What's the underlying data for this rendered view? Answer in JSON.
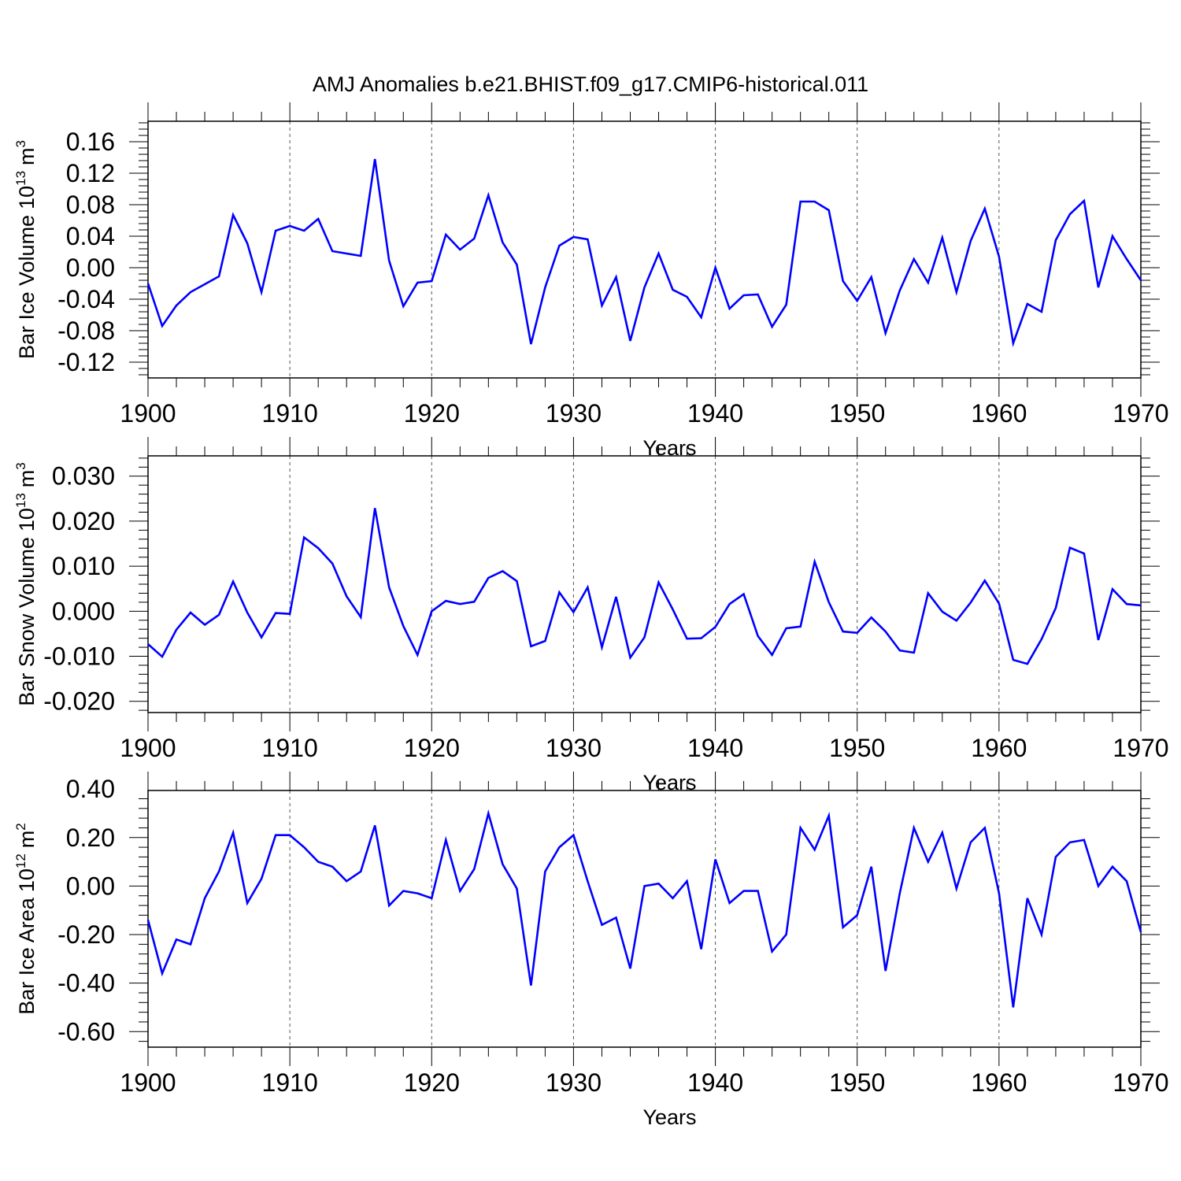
{
  "title": "AMJ Anomalies b.e21.BHIST.f09_g17.CMIP6-historical.011",
  "chart_data": [
    {
      "type": "line",
      "ylabel": "Bar Ice Volume",
      "ylabel_unit_base": "10",
      "ylabel_unit_exp": "13",
      "ylabel_unit_var": "m",
      "ylabel_unit_var_exp": "3",
      "xlabel": "Years",
      "xlim": [
        1900,
        1970
      ],
      "ylim": [
        -0.14,
        0.186
      ],
      "xticks": [
        1900,
        1910,
        1920,
        1930,
        1940,
        1950,
        1960,
        1970
      ],
      "yticks": [
        -0.12,
        -0.08,
        -0.04,
        0.0,
        0.04,
        0.08,
        0.12,
        0.16
      ],
      "ytick_labels": [
        "-0.12",
        "-0.08",
        "-0.04",
        "0.00",
        "0.04",
        "0.08",
        "0.12",
        "0.16"
      ],
      "grid": "dashed vertical lines at major x ticks",
      "series": [
        {
          "color": "#0000ff",
          "x": [
            1900,
            1901,
            1902,
            1903,
            1904,
            1905,
            1906,
            1907,
            1908,
            1909,
            1910,
            1911,
            1912,
            1913,
            1914,
            1915,
            1916,
            1917,
            1918,
            1919,
            1920,
            1921,
            1922,
            1923,
            1924,
            1925,
            1926,
            1927,
            1928,
            1929,
            1930,
            1931,
            1932,
            1933,
            1934,
            1935,
            1936,
            1937,
            1938,
            1939,
            1940,
            1941,
            1942,
            1943,
            1944,
            1945,
            1946,
            1947,
            1948,
            1949,
            1950,
            1951,
            1952,
            1953,
            1954,
            1955,
            1956,
            1957,
            1958,
            1959,
            1960,
            1961,
            1962,
            1963,
            1964,
            1965,
            1966,
            1967,
            1968,
            1969,
            1970
          ],
          "values": [
            -0.02,
            -0.074,
            -0.048,
            -0.031,
            -0.021,
            -0.011,
            0.067,
            0.031,
            -0.031,
            0.047,
            0.053,
            0.047,
            0.062,
            0.021,
            0.018,
            0.015,
            0.138,
            0.009,
            -0.049,
            -0.019,
            -0.017,
            0.042,
            0.023,
            0.037,
            0.092,
            0.032,
            0.004,
            -0.097,
            -0.025,
            0.028,
            0.039,
            0.036,
            -0.048,
            -0.012,
            -0.093,
            -0.025,
            0.018,
            -0.028,
            -0.037,
            -0.063,
            0.0,
            -0.052,
            -0.035,
            -0.034,
            -0.075,
            -0.047,
            0.084,
            0.084,
            0.073,
            -0.017,
            -0.042,
            -0.012,
            -0.083,
            -0.029,
            0.011,
            -0.019,
            0.038,
            -0.031,
            0.034,
            0.075,
            0.014,
            -0.096,
            -0.046,
            -0.056,
            0.035,
            0.068,
            0.085,
            -0.025,
            0.04,
            0.011,
            -0.016
          ]
        }
      ]
    },
    {
      "type": "line",
      "ylabel": "Bar Snow Volume",
      "ylabel_unit_base": "10",
      "ylabel_unit_exp": "13",
      "ylabel_unit_var": "m",
      "ylabel_unit_var_exp": "3",
      "xlabel": "Years",
      "xlim": [
        1900,
        1970
      ],
      "ylim": [
        -0.0225,
        0.0345
      ],
      "xticks": [
        1900,
        1910,
        1920,
        1930,
        1940,
        1950,
        1960,
        1970
      ],
      "yticks": [
        -0.02,
        -0.01,
        0.0,
        0.01,
        0.02,
        0.03
      ],
      "ytick_labels": [
        "-0.020",
        "-0.010",
        "0.000",
        "0.010",
        "0.020",
        "0.030"
      ],
      "grid": "dashed vertical lines at major x ticks",
      "series": [
        {
          "color": "#0000ff",
          "x": [
            1900,
            1901,
            1902,
            1903,
            1904,
            1905,
            1906,
            1907,
            1908,
            1909,
            1910,
            1911,
            1912,
            1913,
            1914,
            1915,
            1916,
            1917,
            1918,
            1919,
            1920,
            1921,
            1922,
            1923,
            1924,
            1925,
            1926,
            1927,
            1928,
            1929,
            1930,
            1931,
            1932,
            1933,
            1934,
            1935,
            1936,
            1937,
            1938,
            1939,
            1940,
            1941,
            1942,
            1943,
            1944,
            1945,
            1946,
            1947,
            1948,
            1949,
            1950,
            1951,
            1952,
            1953,
            1954,
            1955,
            1956,
            1957,
            1958,
            1959,
            1960,
            1961,
            1962,
            1963,
            1964,
            1965,
            1966,
            1967,
            1968,
            1969,
            1970
          ],
          "values": [
            -0.0073,
            -0.0101,
            -0.0041,
            -0.0003,
            -0.003,
            -0.0008,
            0.0066,
            -0.0003,
            -0.0058,
            -0.0004,
            -0.0006,
            0.0164,
            0.014,
            0.0106,
            0.0033,
            -0.0013,
            0.0229,
            0.0053,
            -0.0033,
            -0.0097,
            0.0,
            0.0023,
            0.0016,
            0.0021,
            0.0074,
            0.0089,
            0.0067,
            -0.0078,
            -0.0066,
            0.0042,
            -0.0002,
            0.0053,
            -0.008,
            0.0032,
            -0.0103,
            -0.0058,
            0.0064,
            0.0004,
            -0.0061,
            -0.006,
            -0.0035,
            0.0016,
            0.0038,
            -0.0055,
            -0.0097,
            -0.0038,
            -0.0034,
            0.011,
            0.002,
            -0.0045,
            -0.0048,
            -0.0014,
            -0.0045,
            -0.0087,
            -0.0092,
            0.004,
            -0.0001,
            -0.0021,
            0.0019,
            0.0068,
            0.0017,
            -0.0108,
            -0.0117,
            -0.0062,
            0.0007,
            0.0141,
            0.0128,
            -0.0064,
            0.0049,
            0.0016,
            0.0013
          ]
        }
      ]
    },
    {
      "type": "line",
      "ylabel": "Bar Ice Area",
      "ylabel_unit_base": "10",
      "ylabel_unit_exp": "12",
      "ylabel_unit_var": "m",
      "ylabel_unit_var_exp": "2",
      "xlabel": "Years",
      "xlim": [
        1900,
        1970
      ],
      "ylim": [
        -0.664,
        0.394
      ],
      "xticks": [
        1900,
        1910,
        1920,
        1930,
        1940,
        1950,
        1960,
        1970
      ],
      "yticks": [
        -0.6,
        -0.4,
        -0.2,
        0.0,
        0.2,
        0.4
      ],
      "ytick_labels": [
        "-0.60",
        "-0.40",
        "-0.20",
        "0.00",
        "0.20",
        "0.40"
      ],
      "grid": "dashed vertical lines at major x ticks",
      "series": [
        {
          "color": "#0000ff",
          "x": [
            1900,
            1901,
            1902,
            1903,
            1904,
            1905,
            1906,
            1907,
            1908,
            1909,
            1910,
            1911,
            1912,
            1913,
            1914,
            1915,
            1916,
            1917,
            1918,
            1919,
            1920,
            1921,
            1922,
            1923,
            1924,
            1925,
            1926,
            1927,
            1928,
            1929,
            1930,
            1931,
            1932,
            1933,
            1934,
            1935,
            1936,
            1937,
            1938,
            1939,
            1940,
            1941,
            1942,
            1943,
            1944,
            1945,
            1946,
            1947,
            1948,
            1949,
            1950,
            1951,
            1952,
            1953,
            1954,
            1955,
            1956,
            1957,
            1958,
            1959,
            1960,
            1961,
            1962,
            1963,
            1964,
            1965,
            1966,
            1967,
            1968,
            1969,
            1970
          ],
          "values": [
            -0.14,
            -0.36,
            -0.22,
            -0.24,
            -0.05,
            0.06,
            0.22,
            -0.07,
            0.03,
            0.21,
            0.21,
            0.16,
            0.1,
            0.08,
            0.02,
            0.06,
            0.25,
            -0.08,
            -0.02,
            -0.03,
            -0.05,
            0.19,
            -0.02,
            0.07,
            0.3,
            0.09,
            -0.01,
            -0.41,
            0.06,
            0.16,
            0.21,
            0.02,
            -0.16,
            -0.13,
            -0.34,
            0.0,
            0.01,
            -0.05,
            0.02,
            -0.26,
            0.11,
            -0.07,
            -0.02,
            -0.02,
            -0.27,
            -0.2,
            0.24,
            0.15,
            0.29,
            -0.17,
            -0.12,
            0.08,
            -0.35,
            -0.03,
            0.24,
            0.1,
            0.22,
            -0.01,
            0.18,
            0.24,
            -0.03,
            -0.5,
            -0.05,
            -0.2,
            0.12,
            0.18,
            0.19,
            0.0,
            0.08,
            0.02,
            -0.19
          ]
        }
      ]
    }
  ]
}
